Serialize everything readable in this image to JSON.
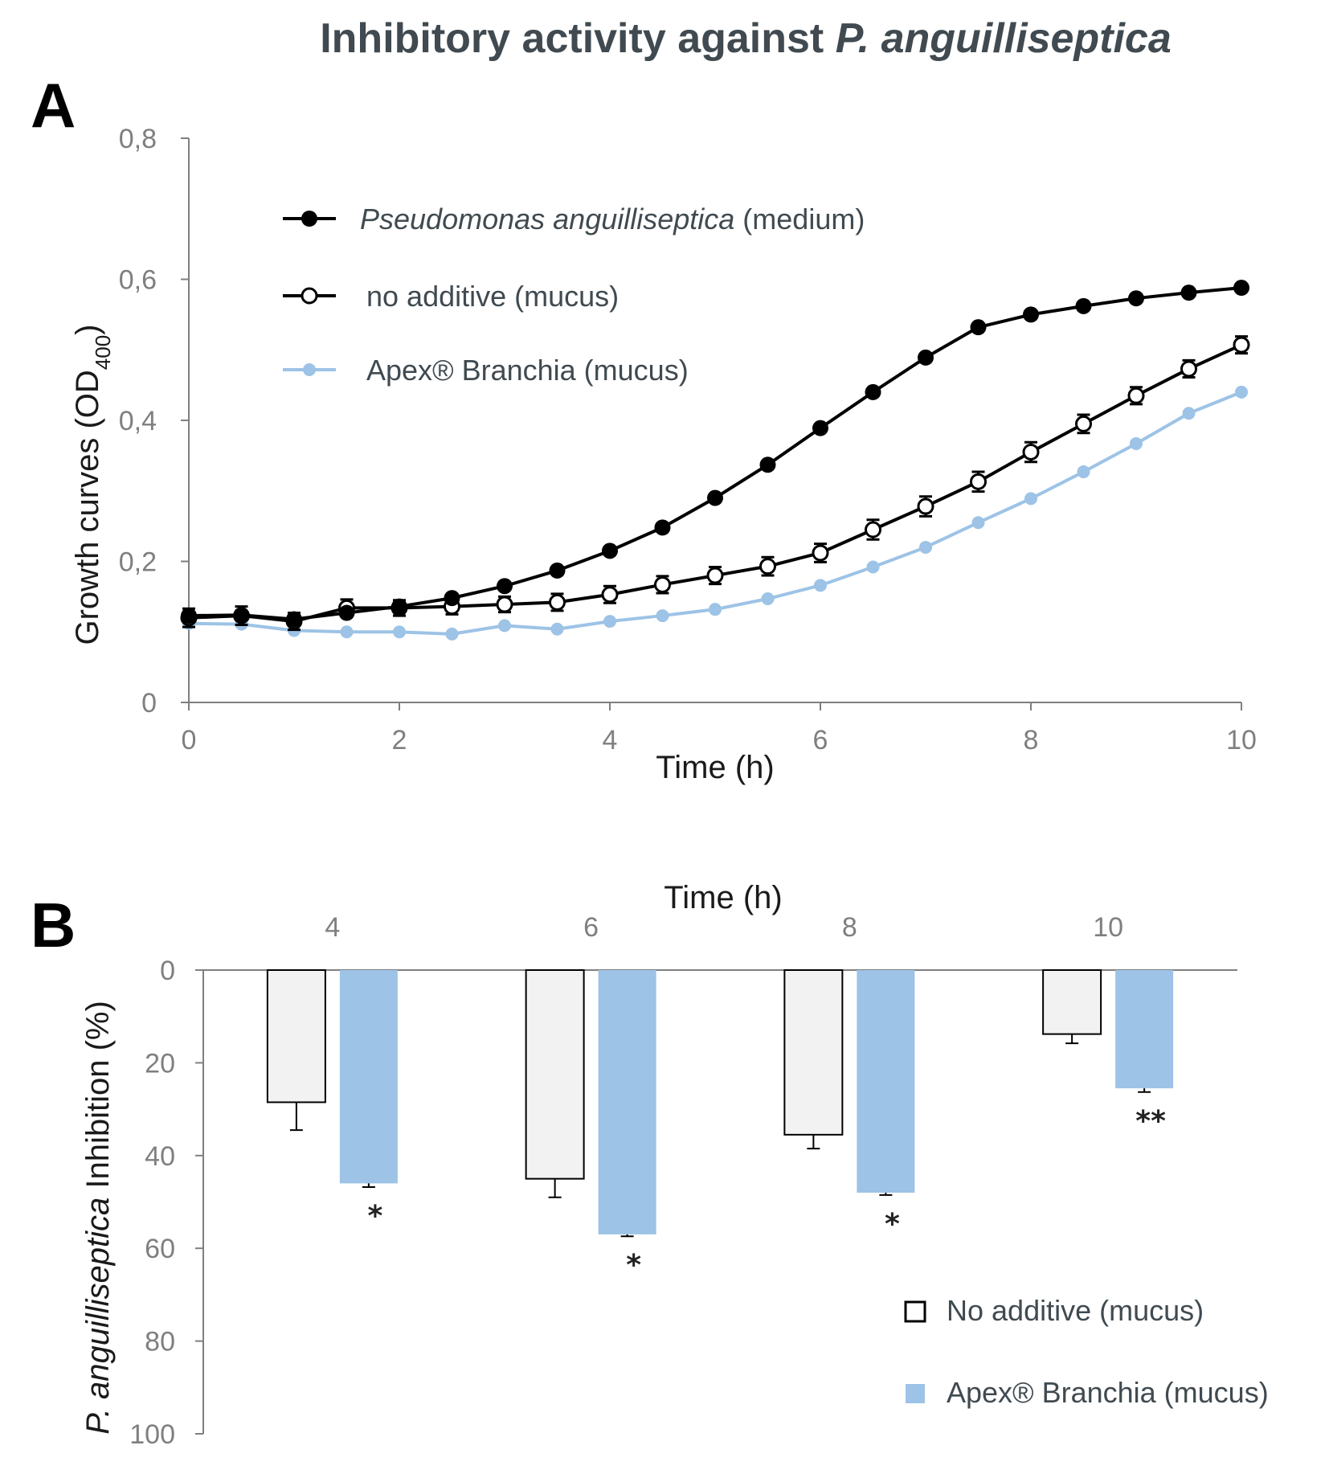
{
  "title": {
    "main": "Inhibitory activity against ",
    "species": "P. anguilliseptica"
  },
  "colors": {
    "black": "#000000",
    "blue": "#9dc3e6",
    "white_bar": "#f2f2f2",
    "axis": "#7f7f7f",
    "text": "#404a50"
  },
  "chart_data": [
    {
      "panel": "A",
      "type": "line",
      "xlabel": "Time (h)",
      "ylabel": {
        "main": "Growth curves (OD",
        "sub": "400",
        "close": ")"
      },
      "xlim": [
        0,
        10
      ],
      "ylim": [
        0,
        0.8
      ],
      "x": [
        0,
        0.5,
        1,
        1.5,
        2,
        2.5,
        3,
        3.5,
        4,
        4.5,
        5,
        5.5,
        6,
        6.5,
        7,
        7.5,
        8,
        8.5,
        9,
        9.5,
        10
      ],
      "xticks": [
        {
          "v": 0,
          "label": "0"
        },
        {
          "v": 2,
          "label": "2"
        },
        {
          "v": 4,
          "label": "4"
        },
        {
          "v": 6,
          "label": "6"
        },
        {
          "v": 8,
          "label": "8"
        },
        {
          "v": 10,
          "label": "10"
        }
      ],
      "yticks": [
        {
          "v": 0,
          "label": "0"
        },
        {
          "v": 0.2,
          "label": "0,2"
        },
        {
          "v": 0.4,
          "label": "0,4"
        },
        {
          "v": 0.6,
          "label": "0,6"
        },
        {
          "v": 0.8,
          "label": "0,8"
        }
      ],
      "series": [
        {
          "name": "Pseudomonas anguilliseptica (medium)",
          "legend_italic": "Pseudomonas anguilliseptica",
          "legend_rest": "(medium)",
          "marker": "filled",
          "values": [
            0.123,
            0.124,
            0.118,
            0.127,
            0.136,
            0.148,
            0.165,
            0.187,
            0.215,
            0.248,
            0.29,
            0.337,
            0.389,
            0.44,
            0.489,
            0.532,
            0.55,
            0.562,
            0.573,
            0.581,
            0.588
          ],
          "errors": [
            0.005,
            0.005,
            0.005,
            0.005,
            0.005,
            0.005,
            0.005,
            0.005,
            0.005,
            0.005,
            0.005,
            0.005,
            0.005,
            0.005,
            0.005,
            0.005,
            0.005,
            0.005,
            0.005,
            0.005,
            0.005
          ]
        },
        {
          "name": "no additive (mucus)",
          "legend_italic": "",
          "legend_rest": "no additive (mucus)",
          "marker": "open",
          "values": [
            0.12,
            0.123,
            0.115,
            0.134,
            0.134,
            0.136,
            0.139,
            0.142,
            0.153,
            0.167,
            0.18,
            0.193,
            0.212,
            0.245,
            0.278,
            0.313,
            0.355,
            0.395,
            0.435,
            0.473,
            0.507
          ],
          "errors": [
            0.013,
            0.013,
            0.012,
            0.012,
            0.011,
            0.011,
            0.011,
            0.012,
            0.012,
            0.012,
            0.012,
            0.013,
            0.013,
            0.014,
            0.014,
            0.014,
            0.014,
            0.013,
            0.012,
            0.012,
            0.012
          ]
        },
        {
          "name": "Apex® Branchia (mucus)",
          "legend_italic": "",
          "legend_rest": "Apex® Branchia (mucus)",
          "marker": "small",
          "values": [
            0.112,
            0.111,
            0.102,
            0.1,
            0.1,
            0.097,
            0.109,
            0.104,
            0.115,
            0.123,
            0.132,
            0.147,
            0.166,
            0.192,
            0.22,
            0.255,
            0.289,
            0.327,
            0.367,
            0.41,
            0.44
          ],
          "errors": [
            0,
            0,
            0,
            0,
            0,
            0,
            0,
            0,
            0,
            0,
            0,
            0,
            0,
            0,
            0,
            0,
            0,
            0,
            0,
            0,
            0
          ]
        }
      ]
    },
    {
      "panel": "B",
      "type": "bar",
      "xlabel": "Time (h)",
      "ylabel": {
        "italic": "P. anguilliseptica",
        "rest": " Inhibition  (%)"
      },
      "ylim": [
        0,
        100
      ],
      "yticks": [
        {
          "v": 0,
          "label": "0"
        },
        {
          "v": 20,
          "label": "20"
        },
        {
          "v": 40,
          "label": "40"
        },
        {
          "v": 60,
          "label": "60"
        },
        {
          "v": 80,
          "label": "80"
        },
        {
          "v": 100,
          "label": "100"
        }
      ],
      "categories": [
        "4",
        "6",
        "8",
        "10"
      ],
      "series": [
        {
          "name": "No additive (mucus)",
          "values": [
            28.5,
            45,
            35.5,
            13.8
          ],
          "errors": [
            6,
            4,
            3,
            2
          ]
        },
        {
          "name": "Apex® Branchia (mucus)",
          "values": [
            46,
            57,
            48,
            25.5
          ],
          "errors": [
            0.8,
            0.4,
            0.5,
            0.8
          ]
        }
      ],
      "significance": [
        "*",
        "*",
        "*",
        "**"
      ]
    }
  ]
}
